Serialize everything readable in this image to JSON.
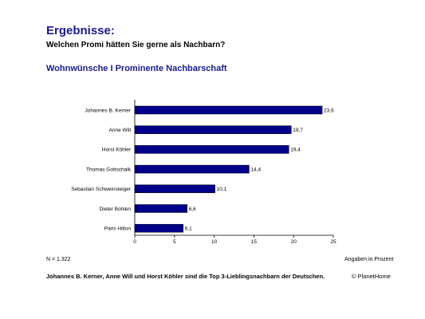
{
  "header": {
    "title": "Ergebnisse:",
    "question": "Welchen Promi hätten Sie gerne als Nachbarn?"
  },
  "chart_data": {
    "type": "bar",
    "orientation": "horizontal",
    "title": "Wohnwünsche I Prominente Nachbarschaft",
    "categories": [
      "Johannes B. Kerner",
      "Anne Will",
      "Horst Köhler",
      "Thomas Gottschalk",
      "Sebastian Schweinsteiger",
      "Dieter Bohlen",
      "Paris Hilton"
    ],
    "values": [
      23.6,
      19.7,
      19.4,
      14.4,
      10.1,
      6.6,
      6.1
    ],
    "value_labels": [
      "23,6",
      "19,7",
      "19,4",
      "14,4",
      "10,1",
      "6,6",
      "6,1"
    ],
    "xlim": [
      0,
      25
    ],
    "xticks": [
      0,
      5,
      10,
      15,
      20,
      25
    ],
    "grid": false,
    "legend": "none",
    "bar_color": "#00008b"
  },
  "footer": {
    "sample_size": "N = 1.322",
    "unit_note": "Angaben in Prozent",
    "conclusion": "Johannes B. Kerner, Anne Will und Horst Köhler sind die Top 3-Lieblingsnachbarn der Deutschen.",
    "copyright": "© PlanetHome"
  },
  "colors": {
    "heading": "#1a1a8c",
    "bar": "#00008b"
  }
}
